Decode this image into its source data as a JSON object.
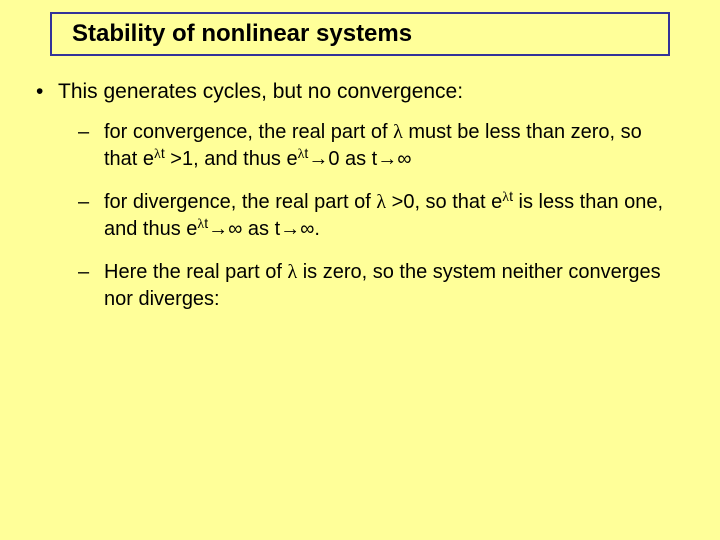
{
  "background_color": "#ffff99",
  "title_border_color": "#333399",
  "font_family": "Comic Sans MS",
  "title": {
    "text": "Stability of nonlinear systems",
    "fontsize": 24,
    "fontweight": "bold"
  },
  "bullets": {
    "l1_marker": "•",
    "l2_marker": "–",
    "l1": {
      "text": "This generates cycles, but no convergence:"
    },
    "l2a": {
      "html": "for convergence, the real part of <span class='lambda'>λ</span> must be less than zero, so that e<sup><span class='lambda'>λ</span>t</sup> >1, and thus e<sup><span class='lambda'>λ</span>t</sup>→0 as t→∞"
    },
    "l2b": {
      "html": "for divergence, the real part of <span class='lambda'>λ</span> >0, so that e<sup><span class='lambda'>λ</span>t</sup> is less than one, and thus e<sup><span class='lambda'>λ</span>t</sup>→∞ as t→∞."
    },
    "l2c": {
      "html": "Here the real part of <span class='lambda'>λ</span> is zero, so the system neither converges nor diverges:"
    }
  }
}
